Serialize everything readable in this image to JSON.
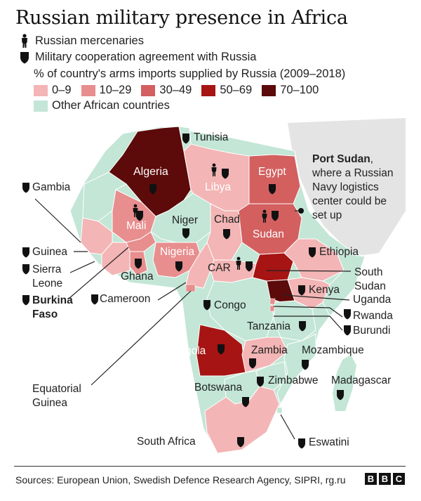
{
  "title": "Russian military presence in Africa",
  "legend": {
    "mercenaries_label": "Russian mercenaries",
    "agreement_label": "Military cooperation agreement with Russia",
    "arms_heading": "% of country's arms imports supplied by Russia (2009–2018)",
    "bins": [
      {
        "label": "0–9",
        "color": "#f3b5b5"
      },
      {
        "label": "10–29",
        "color": "#e88e8e"
      },
      {
        "label": "30–49",
        "color": "#d35f5f"
      },
      {
        "label": "50–69",
        "color": "#a61414"
      },
      {
        "label": "70–100",
        "color": "#5c0a0a"
      }
    ],
    "other_label": "Other African countries",
    "other_color": "#c3e6d6"
  },
  "countries": {
    "algeria": "Algeria",
    "tunisia": "Tunisia",
    "libya": "Libya",
    "egypt": "Egypt",
    "gambia": "Gambia",
    "mali": "Mali",
    "niger": "Niger",
    "chad": "Chad",
    "sudan": "Sudan",
    "guinea": "Guinea",
    "sierra_leone": "Sierra Leone",
    "burkina_faso": "Burkina Faso",
    "ghana": "Ghana",
    "nigeria": "Nigeria",
    "ethiopia": "Ethiopia",
    "car": "CAR",
    "south_sudan": "South Sudan",
    "cameroon": "Cameroon",
    "kenya": "Kenya",
    "uganda": "Uganda",
    "congo": "Congo",
    "rwanda": "Rwanda",
    "burundi": "Burundi",
    "tanzania": "Tanzania",
    "angola": "Angola",
    "zambia": "Zambia",
    "mozambique": "Mozambique",
    "zimbabwe": "Zimbabwe",
    "madagascar": "Madagascar",
    "equatorial_guinea": "Equatorial Guinea",
    "botswana": "Botswana",
    "south_africa": "South Africa",
    "eswatini": "Eswatini"
  },
  "port_sudan": {
    "name": "Port Sudan",
    "note": "where a Russian Navy logistics center could be set up"
  },
  "sources": "Sources: European Union, Swedish Defence Research Agency, SIPRI, rg.ru",
  "logo": [
    "B",
    "B",
    "C"
  ]
}
